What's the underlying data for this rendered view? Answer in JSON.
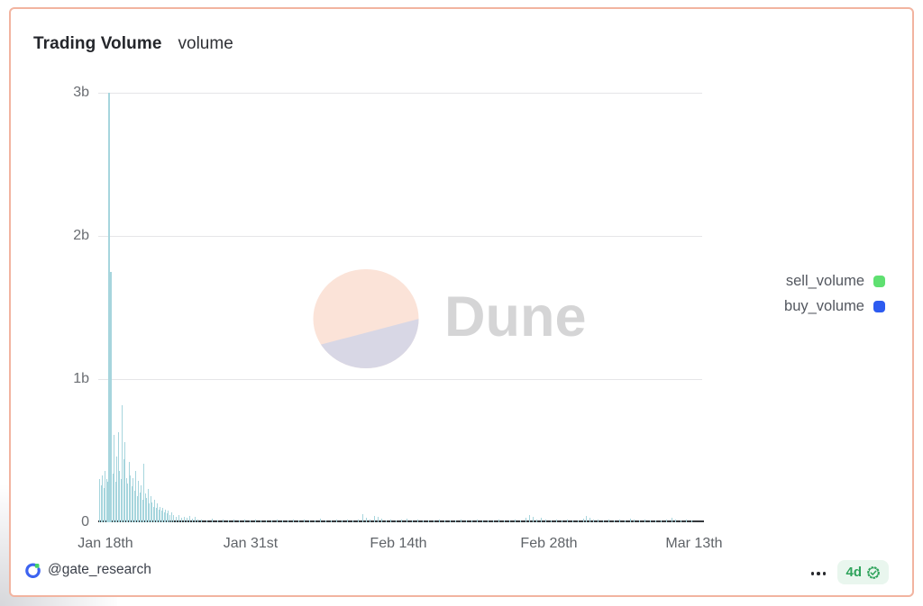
{
  "header": {
    "title": "Trading Volume",
    "subtitle": "volume"
  },
  "chart_data": {
    "type": "bar",
    "title": "Trading Volume",
    "subtitle": "volume",
    "stacked": true,
    "series": [
      {
        "name": "sell_volume",
        "color": "#5fe071"
      },
      {
        "name": "buy_volume",
        "color": "#2d5bf0"
      }
    ],
    "y_ticks": [
      "3b",
      "2b",
      "1b",
      "0"
    ],
    "ylim_billions": [
      0,
      3
    ],
    "x_ticks": [
      "Jan 18th",
      "Jan 31st",
      "Feb 14th",
      "Feb 28th",
      "Mar 13th"
    ],
    "x_range": "Jan 18 to ~Mar 16",
    "grid": "horizontal only",
    "legend_position": "right",
    "peak_note": "Max combined volume ~3b on Jan 18, secondary spike ~1.75b, cluster decays to near zero by late January; small bumps mid-Feb and late-Feb/early-Mar",
    "bars_unit": "x = px offset along time axis (0-660), v = total volume in billions",
    "bars": [
      [
        0,
        0.3
      ],
      [
        2,
        0.26
      ],
      [
        3,
        0.33
      ],
      [
        5,
        0.24
      ],
      [
        6,
        0.36
      ],
      [
        8,
        0.3
      ],
      [
        9,
        0.28
      ],
      [
        10,
        3.0
      ],
      [
        12,
        1.75
      ],
      [
        13,
        0.52
      ],
      [
        15,
        0.34
      ],
      [
        16,
        0.61
      ],
      [
        18,
        0.28
      ],
      [
        19,
        0.46
      ],
      [
        21,
        0.63
      ],
      [
        22,
        0.36
      ],
      [
        24,
        0.3
      ],
      [
        25,
        0.82
      ],
      [
        27,
        0.44
      ],
      [
        28,
        0.56
      ],
      [
        30,
        0.31
      ],
      [
        31,
        0.27
      ],
      [
        33,
        0.42
      ],
      [
        34,
        0.33
      ],
      [
        36,
        0.25
      ],
      [
        37,
        0.31
      ],
      [
        39,
        0.22
      ],
      [
        40,
        0.36
      ],
      [
        42,
        0.18
      ],
      [
        43,
        0.29
      ],
      [
        45,
        0.21
      ],
      [
        46,
        0.26
      ],
      [
        48,
        0.16
      ],
      [
        49,
        0.41
      ],
      [
        51,
        0.2
      ],
      [
        52,
        0.17
      ],
      [
        54,
        0.23
      ],
      [
        55,
        0.13
      ],
      [
        57,
        0.18
      ],
      [
        58,
        0.14
      ],
      [
        60,
        0.11
      ],
      [
        61,
        0.16
      ],
      [
        63,
        0.1
      ],
      [
        64,
        0.13
      ],
      [
        66,
        0.09
      ],
      [
        67,
        0.11
      ],
      [
        69,
        0.08
      ],
      [
        70,
        0.1
      ],
      [
        72,
        0.07
      ],
      [
        73,
        0.09
      ],
      [
        75,
        0.06
      ],
      [
        76,
        0.08
      ],
      [
        78,
        0.05
      ],
      [
        80,
        0.07
      ],
      [
        82,
        0.05
      ],
      [
        85,
        0.04
      ],
      [
        88,
        0.05
      ],
      [
        91,
        0.03
      ],
      [
        94,
        0.04
      ],
      [
        97,
        0.03
      ],
      [
        100,
        0.045
      ],
      [
        103,
        0.025
      ],
      [
        106,
        0.035
      ],
      [
        109,
        0.02
      ],
      [
        113,
        0.02
      ],
      [
        119,
        0.015
      ],
      [
        125,
        0.025
      ],
      [
        131,
        0.012
      ],
      [
        137,
        0.02
      ],
      [
        143,
        0.015
      ],
      [
        149,
        0.022
      ],
      [
        155,
        0.01
      ],
      [
        161,
        0.018
      ],
      [
        167,
        0.012
      ],
      [
        173,
        0.02
      ],
      [
        179,
        0.01
      ],
      [
        185,
        0.015
      ],
      [
        191,
        0.012
      ],
      [
        197,
        0.018
      ],
      [
        203,
        0.01
      ],
      [
        209,
        0.014
      ],
      [
        215,
        0.02
      ],
      [
        221,
        0.012
      ],
      [
        227,
        0.016
      ],
      [
        233,
        0.01
      ],
      [
        239,
        0.014
      ],
      [
        245,
        0.028
      ],
      [
        251,
        0.014
      ],
      [
        257,
        0.01
      ],
      [
        263,
        0.016
      ],
      [
        269,
        0.012
      ],
      [
        275,
        0.018
      ],
      [
        281,
        0.012
      ],
      [
        287,
        0.022
      ],
      [
        292,
        0.055
      ],
      [
        296,
        0.03
      ],
      [
        300,
        0.02
      ],
      [
        305,
        0.045
      ],
      [
        309,
        0.035
      ],
      [
        313,
        0.025
      ],
      [
        318,
        0.015
      ],
      [
        323,
        0.02
      ],
      [
        329,
        0.012
      ],
      [
        335,
        0.018
      ],
      [
        341,
        0.025
      ],
      [
        347,
        0.012
      ],
      [
        353,
        0.016
      ],
      [
        359,
        0.01
      ],
      [
        365,
        0.015
      ],
      [
        371,
        0.012
      ],
      [
        377,
        0.018
      ],
      [
        383,
        0.01
      ],
      [
        389,
        0.014
      ],
      [
        395,
        0.012
      ],
      [
        401,
        0.016
      ],
      [
        407,
        0.01
      ],
      [
        413,
        0.014
      ],
      [
        419,
        0.018
      ],
      [
        425,
        0.01
      ],
      [
        431,
        0.015
      ],
      [
        437,
        0.012
      ],
      [
        443,
        0.016
      ],
      [
        449,
        0.01
      ],
      [
        455,
        0.013
      ],
      [
        461,
        0.018
      ],
      [
        467,
        0.012
      ],
      [
        473,
        0.03
      ],
      [
        477,
        0.05
      ],
      [
        481,
        0.035
      ],
      [
        485,
        0.022
      ],
      [
        490,
        0.032
      ],
      [
        495,
        0.018
      ],
      [
        501,
        0.014
      ],
      [
        507,
        0.02
      ],
      [
        513,
        0.012
      ],
      [
        519,
        0.016
      ],
      [
        525,
        0.011
      ],
      [
        531,
        0.015
      ],
      [
        537,
        0.025
      ],
      [
        540,
        0.045
      ],
      [
        544,
        0.03
      ],
      [
        548,
        0.022
      ],
      [
        553,
        0.016
      ],
      [
        559,
        0.012
      ],
      [
        565,
        0.018
      ],
      [
        571,
        0.012
      ],
      [
        577,
        0.016
      ],
      [
        583,
        0.011
      ],
      [
        589,
        0.028
      ],
      [
        593,
        0.02
      ],
      [
        599,
        0.014
      ],
      [
        605,
        0.018
      ],
      [
        611,
        0.011
      ],
      [
        617,
        0.015
      ],
      [
        623,
        0.012
      ],
      [
        629,
        0.02
      ],
      [
        635,
        0.032
      ],
      [
        639,
        0.022
      ],
      [
        645,
        0.014
      ],
      [
        651,
        0.018
      ],
      [
        657,
        0.012
      ]
    ]
  },
  "watermark": {
    "text": "Dune"
  },
  "footer": {
    "author": "@gate_research",
    "age": "4d"
  },
  "icons": {
    "gate_logo": "gate-logo-icon (blue open ring with green square)",
    "verified": "verified-check-icon",
    "more": "ellipsis-icon"
  },
  "colors": {
    "card_border": "#f2b4a0",
    "bar": "#a6d5dd",
    "sell": "#5fe071",
    "buy": "#2d5bf0",
    "pill_bg": "#e9f6ee",
    "pill_fg": "#2ea35b",
    "watermark_peach": "#fbe3d8",
    "watermark_lavender": "#d8d7e5",
    "watermark_text": "#d5d5d6"
  }
}
